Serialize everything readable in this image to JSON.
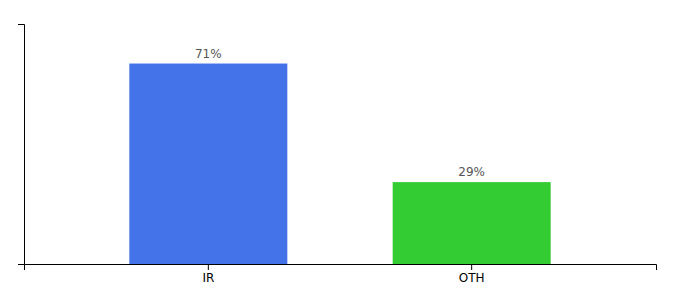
{
  "chart_data": {
    "type": "bar",
    "categories": [
      "IR",
      "OTH"
    ],
    "values": [
      71,
      29
    ],
    "value_labels": [
      "71%",
      "29%"
    ],
    "data_labels": true,
    "colors": [
      "#4472e8",
      "#33cc33"
    ],
    "ylim": [
      0,
      85
    ],
    "tick_labels": "x"
  }
}
